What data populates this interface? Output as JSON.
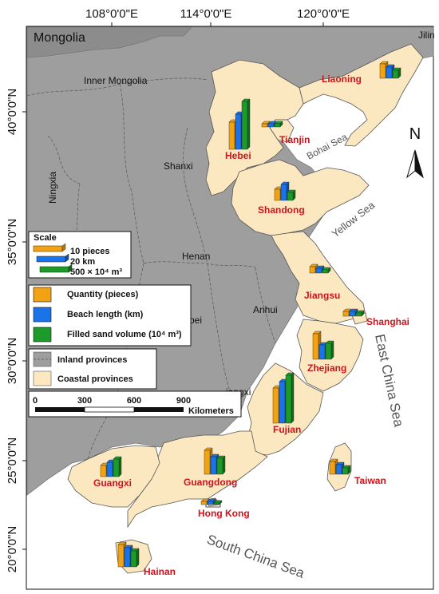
{
  "axes": {
    "top_longitudes": [
      "108°0'0\"E",
      "114°0'0\"E",
      "120°0'0\"E"
    ],
    "left_latitudes": [
      "40°0'0\"N",
      "35°0'0\"N",
      "30°0'0\"N",
      "25°0'0\"N",
      "20°0'0\"N"
    ]
  },
  "countries": {
    "mongolia": "Mongolia",
    "jilin": "Jilin"
  },
  "inland": {
    "inner_mongolia": "Inner Mongolia",
    "shanxi": "Shanxi",
    "ningxia": "Ningxia",
    "henan": "Henan",
    "anhui": "Anhui",
    "hubei_partial": "bei",
    "jiangxi_partial": "iangxi"
  },
  "provinces": {
    "liaoning": "Liaoning",
    "hebei": "Hebei",
    "tianjin": "Tianjin",
    "shandong": "Shandong",
    "jiangsu": "Jiangsu",
    "shanghai": "Shanghai",
    "zhejiang": "Zhejiang",
    "fujian": "Fujian",
    "taiwan": "Taiwan",
    "guangdong": "Guangdong",
    "guangxi": "Guangxi",
    "hong_kong": "Hong Kong",
    "hainan": "Hainan"
  },
  "seas": {
    "bohai": "Bohai Sea",
    "yellow": "Yellow Sea",
    "east_china": "East China Sea",
    "south_china": "South China Sea"
  },
  "north_arrow": "N",
  "legend": {
    "scale_title": "Scale",
    "scale_items": [
      "10 pieces",
      "20 km",
      "500 × 10⁴ m³"
    ],
    "series": [
      {
        "label": "Quantity (pieces)",
        "color": "#f2a314"
      },
      {
        "label": "Beach length (km)",
        "color": "#1a73e8"
      },
      {
        "label": "Filled sand volume (10⁴ m³)",
        "color": "#1c9a2a"
      }
    ],
    "area_types": [
      {
        "label": "Inland provinces",
        "color": "#9e9e9e"
      },
      {
        "label": "Coastal provinces",
        "color": "#fbe8c0"
      }
    ]
  },
  "scalebar": {
    "ticks": [
      "0",
      "300",
      "600",
      "900"
    ],
    "unit": "Kilometers"
  },
  "colors": {
    "land_gray": "#9e9e9e",
    "coastal": "#fbe8c0",
    "sea": "#ffffff",
    "label_red": "#d0121b"
  },
  "chart_data": {
    "type": "bar",
    "categories": [
      "Liaoning",
      "Hebei",
      "Tianjin",
      "Shandong",
      "Jiangsu",
      "Shanghai",
      "Zhejiang",
      "Fujian",
      "Taiwan",
      "Guangdong",
      "Hong Kong",
      "Guangxi",
      "Hainan"
    ],
    "series": [
      {
        "name": "Quantity (pieces)",
        "values": [
          9,
          17,
          2,
          7,
          4,
          3,
          16,
          22,
          8,
          15,
          2,
          7,
          14
        ]
      },
      {
        "name": "Beach length (km)",
        "values": [
          7,
          22,
          2,
          10,
          3,
          3,
          9,
          26,
          6,
          11,
          2,
          9,
          12
        ]
      },
      {
        "name": "Filled sand volume (10⁴ m³)",
        "values": [
          5,
          30,
          2,
          5,
          2,
          2,
          10,
          30,
          4,
          10,
          1,
          11,
          10
        ]
      }
    ]
  }
}
